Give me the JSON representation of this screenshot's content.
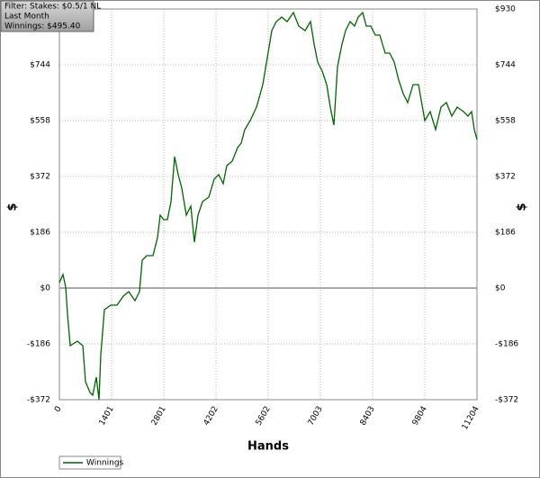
{
  "chart_data": {
    "type": "line",
    "annotations": [
      "Filter: Stakes: $0.5/1 NL",
      "Last Month",
      "Winnings: $495.40"
    ],
    "xlabel": "Hands",
    "ylabel": "$",
    "x": [
      0,
      97,
      169,
      217,
      290,
      483,
      628,
      700,
      821,
      894,
      990,
      1063,
      1111,
      1208,
      1377,
      1546,
      1715,
      1860,
      2029,
      2149,
      2222,
      2343,
      2512,
      2633,
      2705,
      2802,
      2898,
      2994,
      3091,
      3187,
      3284,
      3404,
      3525,
      3621,
      3718,
      3839,
      4008,
      4153,
      4274,
      4394,
      4491,
      4636,
      4781,
      4878,
      4975,
      5120,
      5289,
      5458,
      5578,
      5699,
      5820,
      5964,
      6109,
      6278,
      6423,
      6592,
      6737,
      6834,
      6930,
      7051,
      7172,
      7269,
      7365,
      7462,
      7583,
      7679,
      7800,
      7921,
      8017,
      8138,
      8234,
      8355,
      8476,
      8596,
      8741,
      8862,
      8983,
      9103,
      9224,
      9345,
      9490,
      9635,
      9804,
      9949,
      10093,
      10238,
      10383,
      10528,
      10673,
      10842,
      10962,
      11059,
      11131,
      11204
    ],
    "series": [
      {
        "name": "Winnings",
        "color": "#006400",
        "values": [
          18,
          45,
          3,
          -87,
          -192,
          -177,
          -192,
          -312,
          -348,
          -357,
          -297,
          -372,
          -222,
          -72,
          -57,
          -57,
          -27,
          -12,
          -42,
          -12,
          93,
          108,
          108,
          168,
          243,
          228,
          228,
          288,
          438,
          378,
          333,
          243,
          273,
          153,
          243,
          288,
          303,
          363,
          378,
          348,
          408,
          423,
          468,
          483,
          528,
          558,
          603,
          678,
          768,
          858,
          888,
          903,
          888,
          918,
          873,
          858,
          888,
          813,
          753,
          723,
          678,
          603,
          543,
          738,
          813,
          858,
          888,
          873,
          903,
          918,
          873,
          873,
          843,
          843,
          783,
          783,
          753,
          693,
          648,
          618,
          678,
          678,
          558,
          588,
          528,
          603,
          618,
          573,
          603,
          588,
          573,
          588,
          528,
          495
        ]
      }
    ],
    "xlim": [
      0,
      11204
    ],
    "xticks": [
      0,
      1401,
      2801,
      4202,
      5602,
      7003,
      8403,
      9804,
      11204
    ],
    "ylim": [
      -372,
      930
    ],
    "yticks": [
      {
        "value": -372,
        "label": "-$372"
      },
      {
        "value": -186,
        "label": "-$186"
      },
      {
        "value": 0,
        "label": "$0"
      },
      {
        "value": 186,
        "label": "$186"
      },
      {
        "value": 372,
        "label": "$372"
      },
      {
        "value": 558,
        "label": "$558"
      },
      {
        "value": 744,
        "label": "$744"
      },
      {
        "value": 930,
        "label": "$930"
      }
    ],
    "grid": true
  }
}
